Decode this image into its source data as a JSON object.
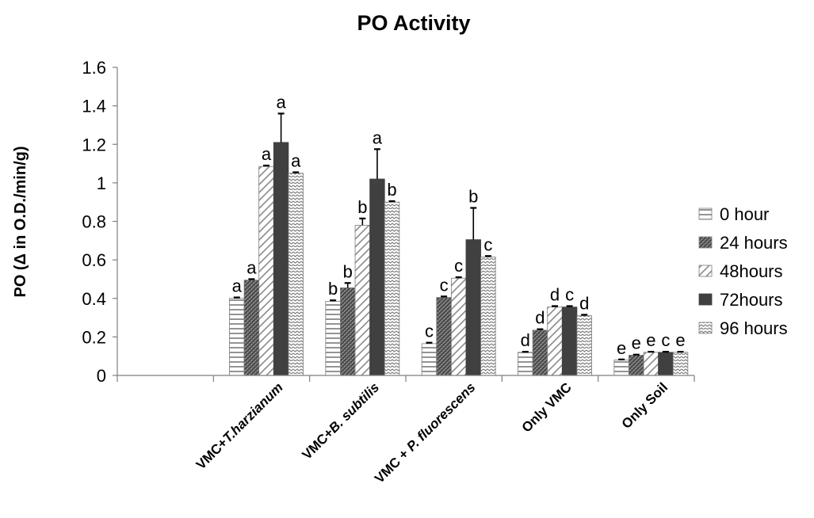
{
  "chart_data": {
    "type": "bar",
    "title": "PO Activity",
    "ylabel": "PO (Δ in O.D./min/g)",
    "xlabel": "",
    "ylim": [
      0,
      1.6
    ],
    "yticks": [
      "0",
      "0.2",
      "0.4",
      "0.6",
      "0.8",
      "1",
      "1.2",
      "1.4",
      "1.6"
    ],
    "grid": false,
    "legend_position": "right",
    "categories": [
      "",
      "VMC+T.harzianum",
      "VMC+B. subtilis",
      "VMC + P. fluorescens",
      "Only VMC",
      "Only Soil"
    ],
    "series": [
      {
        "name": "0 hour",
        "pattern": "horizontal-lines",
        "values": [
          null,
          0.4,
          0.385,
          0.165,
          0.12,
          0.08
        ],
        "errors": [
          null,
          0.005,
          0.005,
          0.005,
          0.003,
          0.003
        ],
        "letters": [
          "",
          "a",
          "b",
          "c",
          "d",
          "e"
        ]
      },
      {
        "name": "24 hours",
        "pattern": "dense-diagonal",
        "values": [
          null,
          0.495,
          0.455,
          0.405,
          0.235,
          0.105
        ],
        "errors": [
          null,
          0.005,
          0.025,
          0.005,
          0.005,
          0.003
        ],
        "letters": [
          "",
          "a",
          "b",
          "c",
          "d",
          "e"
        ]
      },
      {
        "name": "48hours",
        "pattern": "light-diagonal",
        "values": [
          null,
          1.085,
          0.78,
          0.505,
          0.355,
          0.12
        ],
        "errors": [
          null,
          0.005,
          0.035,
          0.005,
          0.005,
          0.003
        ],
        "letters": [
          "",
          "a",
          "b",
          "c",
          "d",
          "e"
        ]
      },
      {
        "name": "72hours",
        "pattern": "solid",
        "values": [
          null,
          1.21,
          1.02,
          0.705,
          0.355,
          0.12
        ],
        "errors": [
          null,
          0.15,
          0.155,
          0.165,
          0.005,
          0.003
        ],
        "letters": [
          "",
          "a",
          "a",
          "b",
          "c",
          "c"
        ]
      },
      {
        "name": "96 hours",
        "pattern": "zigzag",
        "values": [
          null,
          1.05,
          0.9,
          0.615,
          0.31,
          0.12
        ],
        "errors": [
          null,
          0.005,
          0.005,
          0.005,
          0.005,
          0.003
        ],
        "letters": [
          "",
          "a",
          "b",
          "c",
          "d",
          "e"
        ]
      }
    ],
    "colors": {
      "axis": "#7f7f7f",
      "solid": "#404040",
      "dense": "#595959",
      "pattern": "#6e6e6e",
      "text": "#000000"
    }
  }
}
